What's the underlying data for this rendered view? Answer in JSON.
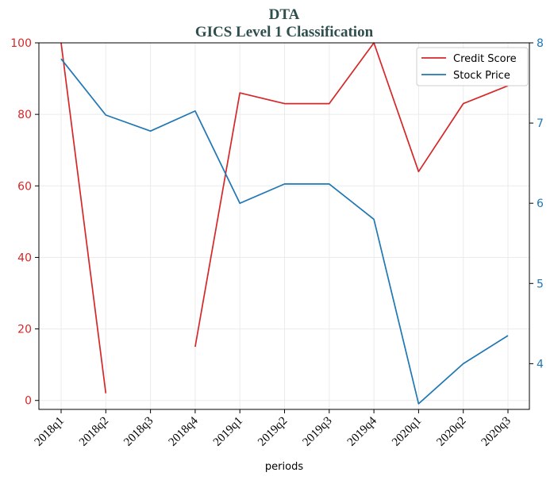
{
  "chart_data": {
    "type": "line",
    "title": "DTA",
    "subtitle": "GICS Level 1 Classification",
    "xlabel": "periods",
    "categories": [
      "2018q1",
      "2018q2",
      "2018q3",
      "2018q4",
      "2019q1",
      "2019q2",
      "2019q3",
      "2019q4",
      "2020q1",
      "2020q2",
      "2020q3"
    ],
    "series": [
      {
        "name": "Credit Score",
        "axis": "left",
        "color": "#d62728",
        "values": [
          100,
          2,
          null,
          15,
          86,
          83,
          83,
          100,
          64,
          83,
          88
        ]
      },
      {
        "name": "Stock Price",
        "axis": "right",
        "color": "#1f77b4",
        "values": [
          7.8,
          7.1,
          6.9,
          7.15,
          6.0,
          6.24,
          6.24,
          5.8,
          3.5,
          4.0,
          4.35
        ]
      }
    ],
    "y_left": {
      "lim": [
        -2.5,
        100
      ],
      "ticks": [
        0,
        20,
        40,
        60,
        80,
        100
      ],
      "color": "#d62728"
    },
    "y_right": {
      "lim": [
        3.43,
        8.0
      ],
      "ticks": [
        4,
        5,
        6,
        7,
        8
      ],
      "color": "#1f77b4"
    },
    "grid": true,
    "legend_position": "top-right"
  }
}
